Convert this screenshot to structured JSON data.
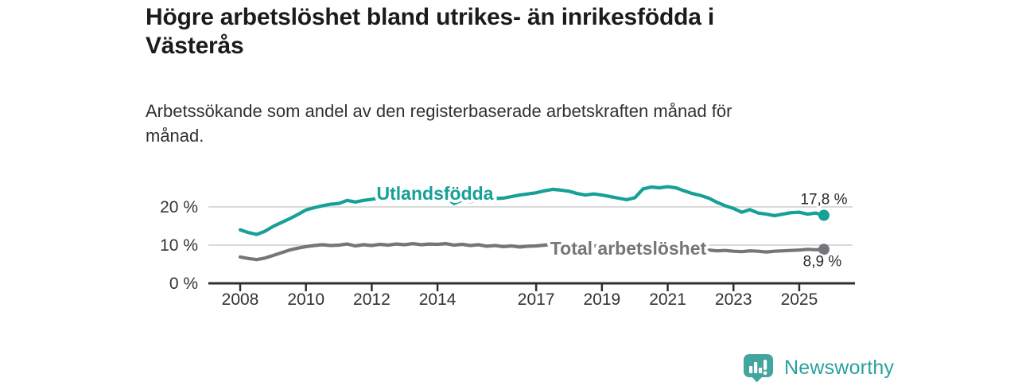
{
  "title": {
    "lines": [
      "Högre arbetslöshet bland utrikes- än inrikesfödda i",
      "Västerås"
    ]
  },
  "subtitle": {
    "lines": [
      "Arbetssökande som andel av den registerbaserade arbetskraften månad för",
      "månad."
    ]
  },
  "branding": {
    "name": "Newsworthy",
    "color": "#2aa29b",
    "icon": "bar-chart-speech-bubble"
  },
  "chart_data": {
    "type": "line",
    "title": "Högre arbetslöshet bland utrikes- än inrikesfödda i Västerås",
    "subtitle": "Arbetssökande som andel av den registerbaserade arbetskraften månad för månad.",
    "unit": "%",
    "x_start": 2008.0,
    "x_step": 0.25,
    "x_ticks": [
      2008,
      2010,
      2012,
      2014,
      2017,
      2019,
      2021,
      2023,
      2025
    ],
    "x_tick_labels": [
      "2008",
      "2010",
      "2012",
      "2014",
      "2017",
      "2019",
      "2021",
      "2023",
      "2025"
    ],
    "y_ticks": [
      {
        "value": 0,
        "label": "0 %"
      },
      {
        "value": 10,
        "label": "10 %"
      },
      {
        "value": 20,
        "label": "20 %"
      }
    ],
    "ylim": [
      0,
      26
    ],
    "grid": "horizontal",
    "legend_position": "inline-labels",
    "series": [
      {
        "name": "Utlandsfödda",
        "color": "#16a096",
        "end_value": 17.8,
        "end_label": "17,8 %",
        "values": [
          14.0,
          13.3,
          12.8,
          13.6,
          14.9,
          15.9,
          16.9,
          18.0,
          19.2,
          19.8,
          20.3,
          20.7,
          20.9,
          21.7,
          21.3,
          21.7,
          22.0,
          22.4,
          22.1,
          22.5,
          22.3,
          22.7,
          22.4,
          22.7,
          22.9,
          22.5,
          20.9,
          21.8,
          21.4,
          22.0,
          21.7,
          22.2,
          22.3,
          22.7,
          23.1,
          23.4,
          23.7,
          24.2,
          24.6,
          24.4,
          24.1,
          23.5,
          23.1,
          23.4,
          23.1,
          22.7,
          22.3,
          21.9,
          22.4,
          24.7,
          25.2,
          25.0,
          25.3,
          25.0,
          24.2,
          23.5,
          23.0,
          22.3,
          21.2,
          20.3,
          19.6,
          18.6,
          19.3,
          18.4,
          18.1,
          17.7,
          18.1,
          18.5,
          18.6,
          18.1,
          18.4,
          17.8
        ]
      },
      {
        "name": "Total arbetslöshet",
        "color": "#76767a",
        "end_value": 8.9,
        "end_label": "8,9 %",
        "values": [
          6.9,
          6.5,
          6.2,
          6.6,
          7.3,
          8.0,
          8.7,
          9.2,
          9.6,
          9.9,
          10.1,
          9.9,
          10.0,
          10.3,
          9.8,
          10.1,
          9.9,
          10.2,
          10.0,
          10.3,
          10.1,
          10.4,
          10.1,
          10.3,
          10.2,
          10.4,
          10.0,
          10.2,
          9.9,
          10.1,
          9.7,
          9.9,
          9.6,
          9.8,
          9.5,
          9.7,
          9.8,
          10.0,
          10.2,
          9.9,
          9.7,
          9.9,
          9.6,
          9.8,
          9.9,
          10.0,
          9.8,
          9.9,
          9.7,
          10.2,
          10.4,
          10.3,
          10.2,
          10.0,
          9.6,
          9.3,
          9.0,
          8.7,
          8.5,
          8.6,
          8.4,
          8.3,
          8.5,
          8.4,
          8.2,
          8.4,
          8.5,
          8.6,
          8.7,
          8.9,
          8.8,
          8.9
        ]
      }
    ]
  }
}
